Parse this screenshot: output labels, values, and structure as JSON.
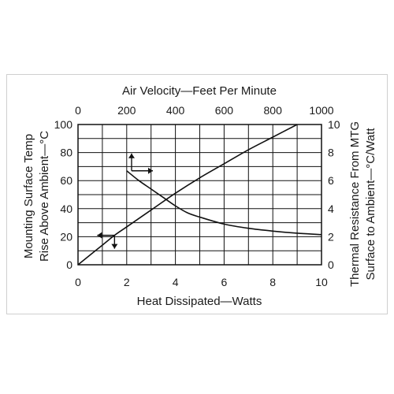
{
  "chart_data": {
    "type": "line",
    "title": "",
    "grid": true,
    "x_bottom": {
      "label": "Heat Dissipated—Watts",
      "range": [
        0,
        10
      ],
      "ticks": [
        "0",
        "2",
        "4",
        "6",
        "8",
        "10"
      ]
    },
    "x_top": {
      "label": "Air Velocity—Feet Per Minute",
      "range": [
        0,
        1000
      ],
      "ticks": [
        "0",
        "200",
        "400",
        "600",
        "800",
        "1000"
      ]
    },
    "y_left": {
      "label_line1": "Mounting Surface Temp",
      "label_line2": "Rise Above Ambient—°C",
      "range": [
        0,
        100
      ],
      "ticks": [
        "0",
        "20",
        "40",
        "60",
        "80",
        "100"
      ]
    },
    "y_right": {
      "label_line1": "Thermal Resistance From MTG",
      "label_line2": "Surface to Ambient—°C/Watt",
      "range": [
        0,
        10
      ],
      "ticks": [
        "0",
        "2",
        "4",
        "6",
        "8",
        "10"
      ]
    },
    "series": [
      {
        "axes": "bottom-left",
        "x": [
          0,
          0.5,
          1,
          1.5,
          2,
          3,
          4,
          5,
          6,
          7,
          8,
          9
        ],
        "y": [
          0,
          7,
          14,
          21,
          27,
          39,
          51,
          62,
          72,
          82,
          91,
          100
        ]
      },
      {
        "axes": "top-right",
        "x": [
          200,
          250,
          300,
          350,
          400,
          450,
          500,
          600,
          700,
          800,
          900,
          1000
        ],
        "y": [
          6.7,
          6.0,
          5.4,
          4.8,
          4.2,
          3.7,
          3.4,
          2.9,
          2.6,
          2.4,
          2.25,
          2.15
        ]
      }
    ],
    "arrows": [
      {
        "reads": "left",
        "at": {
          "x": 1.5,
          "y": 21
        }
      },
      {
        "reads": "bottom",
        "at": {
          "x": 1.5,
          "y": 21
        }
      },
      {
        "reads": "top",
        "at": {
          "x": 220,
          "y": 6.7
        }
      },
      {
        "reads": "right",
        "at": {
          "x": 220,
          "y": 6.7
        }
      }
    ]
  }
}
